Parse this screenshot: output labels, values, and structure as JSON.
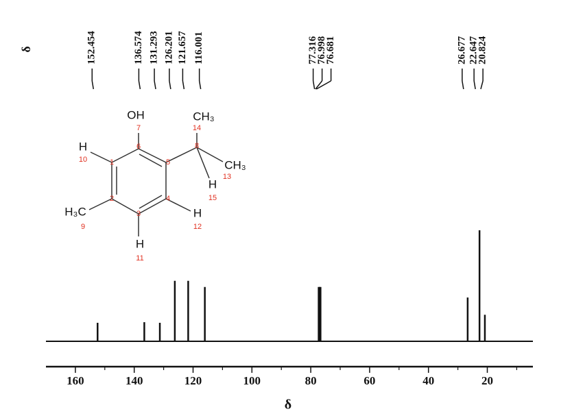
{
  "chart_data": {
    "type": "spectrum",
    "shift_header": "δ",
    "xlabel": "δ",
    "x": [
      152.454,
      136.574,
      131.293,
      126.201,
      121.657,
      116.001,
      77.316,
      76.998,
      76.681,
      26.677,
      22.647,
      20.824
    ],
    "values": [
      30,
      31,
      30,
      98,
      98,
      88,
      88,
      88,
      88,
      71,
      180,
      43
    ],
    "color": "#111111",
    "xlim": [
      170,
      4.5
    ],
    "ylim": [
      0,
      200
    ],
    "xticks": [
      160,
      140,
      120,
      100,
      80,
      60,
      40,
      20
    ],
    "xminorticks": [
      150,
      130,
      110,
      90,
      70,
      50,
      30,
      10
    ]
  },
  "structure": {
    "atoms": [
      {
        "label": "OH",
        "number": "7"
      },
      {
        "label": "CH₃",
        "number": "14"
      },
      {
        "label": "CH₃",
        "number": "13"
      },
      {
        "label": "H",
        "number": "15"
      },
      {
        "label": "H",
        "number": "10"
      },
      {
        "label": "H₃C",
        "number": "9"
      },
      {
        "label": "H",
        "number": "11"
      },
      {
        "label": "H",
        "number": "12"
      }
    ],
    "ring_numbers": [
      "1",
      "2",
      "3",
      "4",
      "5",
      "6",
      "8"
    ]
  }
}
